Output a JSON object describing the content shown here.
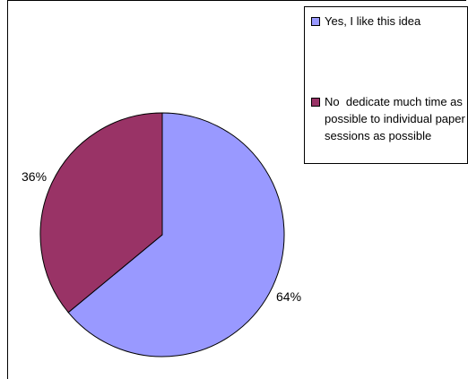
{
  "chart_data": {
    "type": "pie",
    "title": "",
    "slices": [
      {
        "label": "Yes, I like this idea",
        "value": 64,
        "display": "64%",
        "color": "#9999ff"
      },
      {
        "label": "No  dedicate much time as possible to individual paper sessions as possible",
        "value": 36,
        "display": "36%",
        "color": "#993366"
      }
    ],
    "legend_position": "top-right"
  }
}
